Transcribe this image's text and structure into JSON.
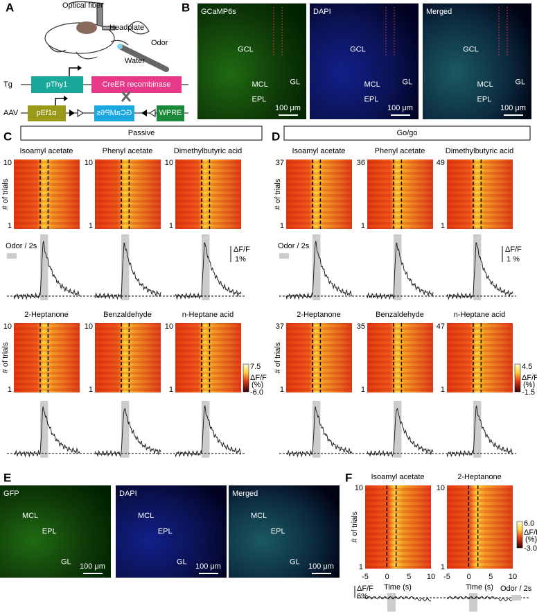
{
  "panel_labels": [
    "A",
    "B",
    "C",
    "D",
    "E",
    "F"
  ],
  "panel_a": {
    "optical_fiber": "Optical fiber",
    "headplate": "Headplate",
    "odor": "Odor",
    "water": "Water",
    "tg": "Tg",
    "pthy1": "pThy1",
    "creer": "CreER recombinase",
    "aav": "AAV",
    "pef1a": "pEf1α",
    "gcamp": "GCaMP6s",
    "wpre": "WPRE"
  },
  "panel_b": {
    "images": [
      {
        "title": "GCaMP6s",
        "labels": [
          "GCL",
          "MCL",
          "EPL",
          "GL"
        ],
        "scale": "100 μm"
      },
      {
        "title": "DAPI",
        "labels": [
          "GCL",
          "MCL",
          "EPL",
          "GL"
        ],
        "scale": "100 μm"
      },
      {
        "title": "Merged",
        "labels": [
          "GCL",
          "MCL",
          "EPL",
          "GL"
        ],
        "scale": "100 μm"
      }
    ]
  },
  "panel_c": {
    "header": "Passive",
    "odors": [
      "Isoamyl acetate",
      "Phenyl acetate",
      "Dimethylbutyric acid",
      "2-Heptanone",
      "Benzaldehyde",
      "n-Heptane acid"
    ],
    "trials": [
      "10",
      "10",
      "10",
      "10",
      "10",
      "10"
    ],
    "trial_min": "1",
    "y_label": "# of trials",
    "odor_key": "Odor / 2s",
    "scale_label": "ΔF/F",
    "scale_value": "1%",
    "colorbar_max": "7.5",
    "colorbar_label": "ΔF/F",
    "colorbar_unit": "(%)",
    "colorbar_min": "-6.0"
  },
  "panel_d": {
    "header": "Go/go",
    "odors": [
      "Isoamyl acetate",
      "Phenyl acetate",
      "Dimethylbutyric acid",
      "2-Heptanone",
      "Benzaldehyde",
      "n-Heptane acid"
    ],
    "trials": [
      "37",
      "36",
      "49",
      "37",
      "35",
      "47"
    ],
    "trial_min": "1",
    "y_label": "# of trials",
    "odor_key": "Odor / 2s",
    "scale_label": "ΔF/F",
    "scale_value": "1 %",
    "colorbar_max": "4.5",
    "colorbar_label": "ΔF/F",
    "colorbar_unit": "(%)",
    "colorbar_min": "-1.5"
  },
  "panel_e": {
    "images": [
      {
        "title": "GFP",
        "labels": [
          "MCL",
          "EPL",
          "GL"
        ],
        "scale": "100 μm"
      },
      {
        "title": "DAPI",
        "labels": [
          "MCL",
          "EPL",
          "GL"
        ],
        "scale": "100 μm"
      },
      {
        "title": "Merged",
        "labels": [
          "MCL",
          "EPL",
          "GL"
        ],
        "scale": "100 μm"
      }
    ]
  },
  "panel_f": {
    "odors": [
      "Isoamyl acetate",
      "2-Heptanone"
    ],
    "y_label": "# of trials",
    "trials": [
      "10",
      "10"
    ],
    "trial_min": "1",
    "x_ticks": [
      "-5",
      "0",
      "5",
      "10"
    ],
    "x_label": "Time (s)",
    "colorbar_max": "6.0",
    "colorbar_label": "ΔF/F",
    "colorbar_unit": "(%)",
    "colorbar_min": "-3.0",
    "scale_label": "ΔF/F",
    "scale_value": "6%",
    "odor_key": "Odor / 2s"
  }
}
